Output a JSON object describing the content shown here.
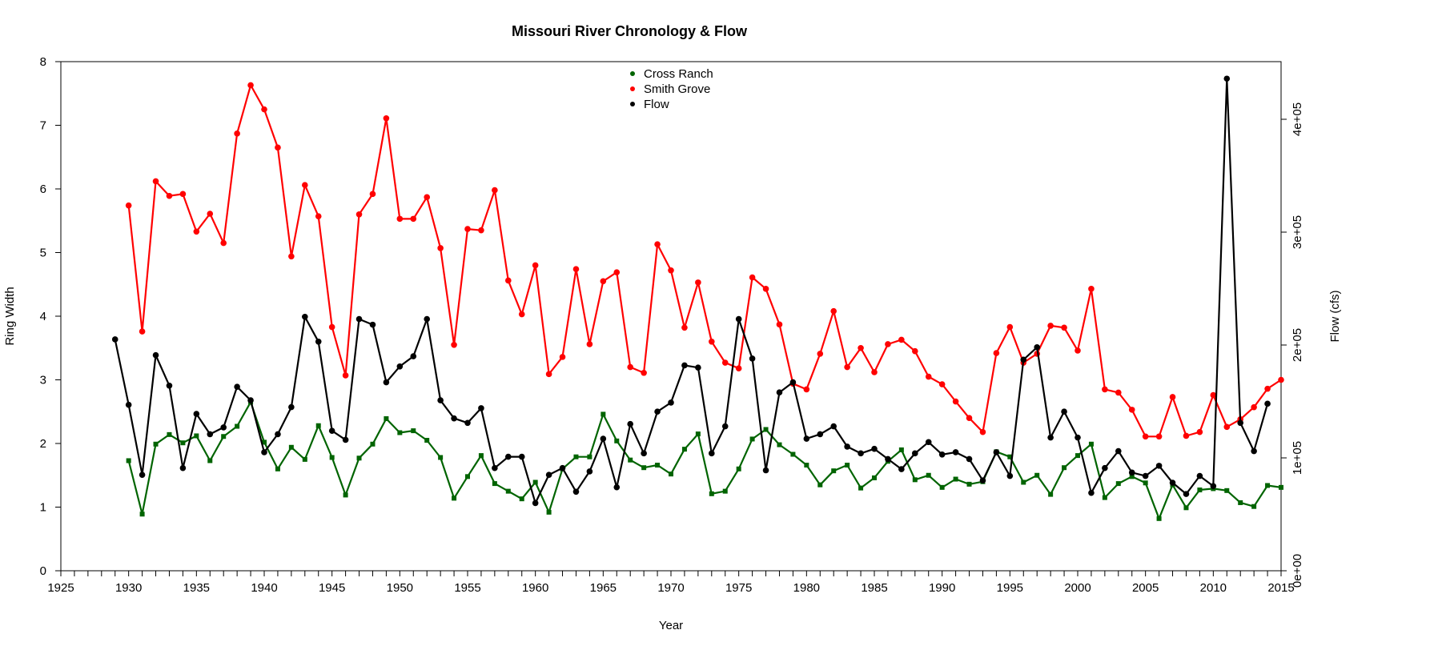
{
  "chart_data": {
    "type": "line",
    "title": "Missouri River Chronology & Flow",
    "xlabel": "Year",
    "ylabel_left": "Ring Width",
    "ylabel_right": "Flow (cfs)",
    "xlim": [
      1925,
      2015
    ],
    "ylim_left": [
      0,
      8
    ],
    "ylim_right": [
      0,
      450000
    ],
    "x_ticks": [
      "1925",
      "1930",
      "1935",
      "1940",
      "1945",
      "1950",
      "1955",
      "1960",
      "1965",
      "1970",
      "1975",
      "1980",
      "1985",
      "1990",
      "1995",
      "2000",
      "2005",
      "2010",
      "2015"
    ],
    "y_left_ticks": [
      "0",
      "1",
      "2",
      "3",
      "4",
      "5",
      "6",
      "7",
      "8"
    ],
    "y_right_ticks": [
      "0e+00",
      "1e+05",
      "2e+05",
      "3e+05",
      "4e+05"
    ],
    "legend_position": "top-center",
    "series": [
      {
        "name": "Cross Ranch",
        "color": "#006400",
        "axis": "left",
        "marker": "square",
        "x": [
          1930,
          1931,
          1932,
          1933,
          1934,
          1935,
          1936,
          1937,
          1938,
          1939,
          1940,
          1941,
          1942,
          1943,
          1944,
          1945,
          1946,
          1947,
          1948,
          1949,
          1950,
          1951,
          1952,
          1953,
          1954,
          1955,
          1956,
          1957,
          1958,
          1959,
          1960,
          1961,
          1962,
          1963,
          1964,
          1965,
          1966,
          1967,
          1968,
          1969,
          1970,
          1971,
          1972,
          1973,
          1974,
          1975,
          1976,
          1977,
          1978,
          1979,
          1980,
          1981,
          1982,
          1983,
          1984,
          1985,
          1986,
          1987,
          1988,
          1989,
          1990,
          1991,
          1992,
          1993,
          1994,
          1995,
          1996,
          1997,
          1998,
          1999,
          2000,
          2001,
          2002,
          2003,
          2004,
          2005,
          2006,
          2007,
          2008,
          2009,
          2010,
          2011,
          2012,
          2013,
          2014,
          2015
        ],
        "values": [
          1.73,
          0.89,
          1.99,
          2.14,
          2.01,
          2.12,
          1.73,
          2.11,
          2.27,
          2.65,
          2.02,
          1.6,
          1.94,
          1.75,
          2.28,
          1.78,
          1.19,
          1.77,
          1.99,
          2.39,
          2.17,
          2.2,
          2.05,
          1.78,
          1.14,
          1.48,
          1.81,
          1.37,
          1.25,
          1.13,
          1.39,
          0.92,
          1.6,
          1.79,
          1.79,
          2.46,
          2.04,
          1.74,
          1.62,
          1.66,
          1.52,
          1.91,
          2.15,
          1.21,
          1.25,
          1.6,
          2.07,
          2.22,
          1.98,
          1.83,
          1.66,
          1.35,
          1.57,
          1.66,
          1.3,
          1.46,
          1.72,
          1.9,
          1.43,
          1.5,
          1.31,
          1.44,
          1.36,
          1.4,
          1.87,
          1.79,
          1.39,
          1.5,
          1.2,
          1.62,
          1.81,
          1.99,
          1.15,
          1.37,
          1.48,
          1.38,
          0.82,
          1.35,
          0.99,
          1.27,
          1.29,
          1.26,
          1.07,
          1.01,
          1.34,
          1.31
        ]
      },
      {
        "name": "Smith Grove",
        "color": "#ff0000",
        "axis": "left",
        "marker": "circle",
        "x": [
          1930,
          1931,
          1932,
          1933,
          1934,
          1935,
          1936,
          1937,
          1938,
          1939,
          1940,
          1941,
          1942,
          1943,
          1944,
          1945,
          1946,
          1947,
          1948,
          1949,
          1950,
          1951,
          1952,
          1953,
          1954,
          1955,
          1956,
          1957,
          1958,
          1959,
          1960,
          1961,
          1962,
          1963,
          1964,
          1965,
          1966,
          1967,
          1968,
          1969,
          1970,
          1971,
          1972,
          1973,
          1974,
          1975,
          1976,
          1977,
          1978,
          1979,
          1980,
          1981,
          1982,
          1983,
          1984,
          1985,
          1986,
          1987,
          1988,
          1989,
          1990,
          1991,
          1992,
          1993,
          1994,
          1995,
          1996,
          1997,
          1998,
          1999,
          2000,
          2001,
          2002,
          2003,
          2004,
          2005,
          2006,
          2007,
          2008,
          2009,
          2010,
          2011,
          2012,
          2013,
          2014,
          2015
        ],
        "values": [
          5.74,
          3.76,
          6.12,
          5.89,
          5.92,
          5.33,
          5.61,
          5.15,
          6.87,
          7.63,
          7.25,
          6.65,
          4.94,
          6.06,
          5.57,
          3.83,
          3.07,
          5.6,
          5.92,
          7.11,
          5.53,
          5.53,
          5.87,
          5.07,
          3.55,
          5.37,
          5.35,
          5.98,
          4.56,
          4.03,
          4.8,
          3.09,
          3.36,
          4.74,
          3.56,
          4.55,
          4.69,
          3.2,
          3.11,
          5.13,
          4.72,
          3.82,
          4.53,
          3.6,
          3.27,
          3.18,
          4.61,
          4.43,
          3.87,
          2.94,
          2.85,
          3.41,
          4.08,
          3.2,
          3.5,
          3.12,
          3.56,
          3.63,
          3.45,
          3.05,
          2.93,
          2.66,
          2.4,
          2.18,
          3.42,
          3.83,
          3.27,
          3.41,
          3.85,
          3.82,
          3.46,
          4.43,
          2.85,
          2.8,
          2.53,
          2.11,
          2.11,
          2.73,
          2.12,
          2.18,
          2.76,
          2.26,
          2.38,
          2.57,
          2.86,
          3.0
        ]
      },
      {
        "name": "Flow",
        "color": "#000000",
        "axis": "right",
        "marker": "circle",
        "x": [
          1929,
          1930,
          1931,
          1932,
          1933,
          1934,
          1935,
          1936,
          1937,
          1938,
          1939,
          1940,
          1941,
          1942,
          1943,
          1944,
          1945,
          1946,
          1947,
          1948,
          1949,
          1950,
          1951,
          1952,
          1953,
          1954,
          1955,
          1956,
          1957,
          1958,
          1959,
          1960,
          1961,
          1962,
          1963,
          1964,
          1965,
          1966,
          1967,
          1968,
          1969,
          1970,
          1971,
          1972,
          1973,
          1974,
          1975,
          1976,
          1977,
          1978,
          1979,
          1980,
          1981,
          1982,
          1983,
          1984,
          1985,
          1986,
          1987,
          1988,
          1989,
          1990,
          1991,
          1992,
          1993,
          1994,
          1995,
          1996,
          1997,
          1998,
          1999,
          2000,
          2001,
          2002,
          2003,
          2004,
          2005,
          2006,
          2007,
          2008,
          2009,
          2010,
          2011,
          2012,
          2013,
          2014
        ],
        "values": [
          205000,
          147000,
          85000,
          191000,
          164000,
          91000,
          139000,
          121000,
          127000,
          163000,
          151000,
          105000,
          121000,
          145000,
          225000,
          203000,
          124000,
          116000,
          223000,
          218000,
          167000,
          181000,
          190000,
          223000,
          151000,
          135000,
          131000,
          144000,
          91000,
          101000,
          101000,
          60000,
          85000,
          91000,
          70000,
          88000,
          117000,
          74000,
          130000,
          104000,
          141000,
          149000,
          182000,
          180000,
          104000,
          128000,
          223000,
          188000,
          89000,
          158000,
          167000,
          117000,
          121000,
          128000,
          110000,
          104000,
          108000,
          99000,
          90000,
          104000,
          114000,
          103000,
          105000,
          99000,
          80000,
          105000,
          84000,
          187000,
          198000,
          118000,
          141000,
          118000,
          69000,
          91000,
          106000,
          87000,
          84000,
          93000,
          78000,
          68000,
          84000,
          75000,
          436000,
          131000,
          106000,
          148000
        ]
      }
    ]
  }
}
